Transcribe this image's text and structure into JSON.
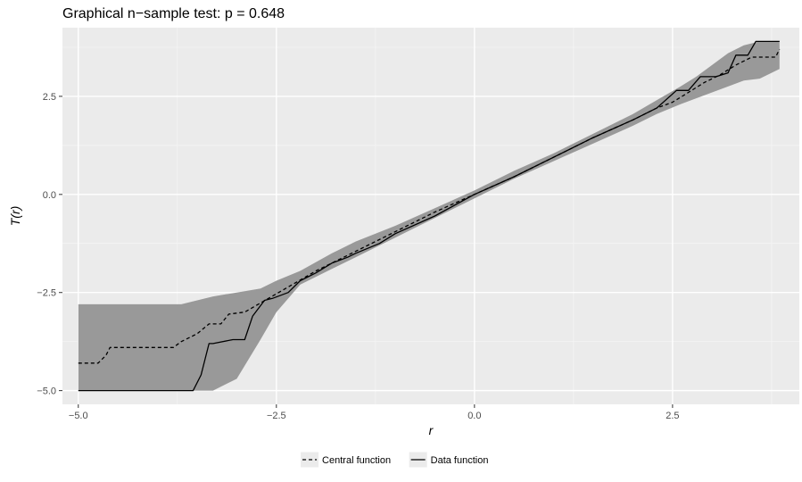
{
  "chart_data": {
    "type": "line",
    "title": "Graphical n−sample test: p = 0.648",
    "xlabel": "r",
    "ylabel": "T(r)",
    "xlim": [
      -5.2,
      4.1
    ],
    "ylim": [
      -5.35,
      4.25
    ],
    "x_ticks": [
      -5.0,
      -2.5,
      0.0,
      2.5
    ],
    "x_tick_labels": [
      "−5.0",
      "−2.5",
      "0.0",
      "2.5"
    ],
    "y_ticks": [
      -5.0,
      -2.5,
      0.0,
      2.5
    ],
    "y_tick_labels": [
      "−5.0",
      "−2.5",
      "0.0",
      "2.5"
    ],
    "grid": true,
    "legend_position": "bottom",
    "envelope": {
      "color": "#999999",
      "x": [
        -5.0,
        -4.0,
        -3.7,
        -3.3,
        -3.0,
        -2.7,
        -2.5,
        -2.2,
        -1.8,
        -1.5,
        -1.0,
        -0.5,
        0.0,
        0.5,
        1.0,
        1.5,
        2.0,
        2.3,
        2.6,
        2.8,
        3.0,
        3.2,
        3.4,
        3.6,
        3.85
      ],
      "lower": [
        -5.0,
        -5.0,
        -5.0,
        -5.0,
        -4.7,
        -3.7,
        -3.0,
        -2.3,
        -1.9,
        -1.6,
        -1.1,
        -0.6,
        -0.1,
        0.4,
        0.85,
        1.3,
        1.75,
        2.05,
        2.3,
        2.45,
        2.6,
        2.75,
        2.9,
        2.95,
        3.2
      ],
      "upper": [
        -2.8,
        -2.8,
        -2.8,
        -2.6,
        -2.5,
        -2.4,
        -2.2,
        -1.95,
        -1.5,
        -1.2,
        -0.8,
        -0.35,
        0.1,
        0.6,
        1.05,
        1.55,
        2.05,
        2.4,
        2.75,
        3.0,
        3.3,
        3.6,
        3.8,
        3.9,
        3.9
      ]
    },
    "series": [
      {
        "name": "Central function",
        "dash": "dashed",
        "color": "#000000",
        "x": [
          -5.0,
          -4.75,
          -4.65,
          -4.6,
          -4.3,
          -3.8,
          -3.7,
          -3.5,
          -3.35,
          -3.2,
          -3.1,
          -2.9,
          -2.6,
          -2.3,
          -2.0,
          -1.5,
          -1.0,
          -0.5,
          0.0,
          0.5,
          1.0,
          1.5,
          2.0,
          2.3,
          2.5,
          2.7,
          2.9,
          3.1,
          3.3,
          3.5,
          3.8,
          3.85
        ],
        "y": [
          -4.3,
          -4.3,
          -4.1,
          -3.9,
          -3.9,
          -3.9,
          -3.75,
          -3.55,
          -3.3,
          -3.3,
          -3.05,
          -3.0,
          -2.65,
          -2.3,
          -1.95,
          -1.45,
          -0.95,
          -0.45,
          0.0,
          0.45,
          0.95,
          1.45,
          1.9,
          2.2,
          2.35,
          2.6,
          2.85,
          3.05,
          3.3,
          3.5,
          3.5,
          3.7
        ]
      },
      {
        "name": "Data function",
        "dash": "solid",
        "color": "#000000",
        "x": [
          -5.0,
          -3.55,
          -3.45,
          -3.35,
          -3.3,
          -3.05,
          -2.9,
          -2.8,
          -2.65,
          -2.55,
          -2.35,
          -2.2,
          -2.0,
          -1.8,
          -1.6,
          -1.5,
          -1.2,
          -1.0,
          -0.5,
          0.0,
          0.5,
          1.0,
          1.5,
          2.0,
          2.3,
          2.55,
          2.7,
          2.85,
          3.05,
          3.2,
          3.3,
          3.45,
          3.55,
          3.85
        ],
        "y": [
          -5.0,
          -5.0,
          -4.6,
          -3.8,
          -3.8,
          -3.7,
          -3.7,
          -3.1,
          -2.7,
          -2.65,
          -2.5,
          -2.2,
          -2.0,
          -1.75,
          -1.6,
          -1.5,
          -1.25,
          -1.0,
          -0.55,
          0.0,
          0.45,
          0.95,
          1.45,
          1.9,
          2.2,
          2.65,
          2.65,
          3.0,
          3.0,
          3.1,
          3.55,
          3.55,
          3.9,
          3.9
        ]
      }
    ]
  }
}
